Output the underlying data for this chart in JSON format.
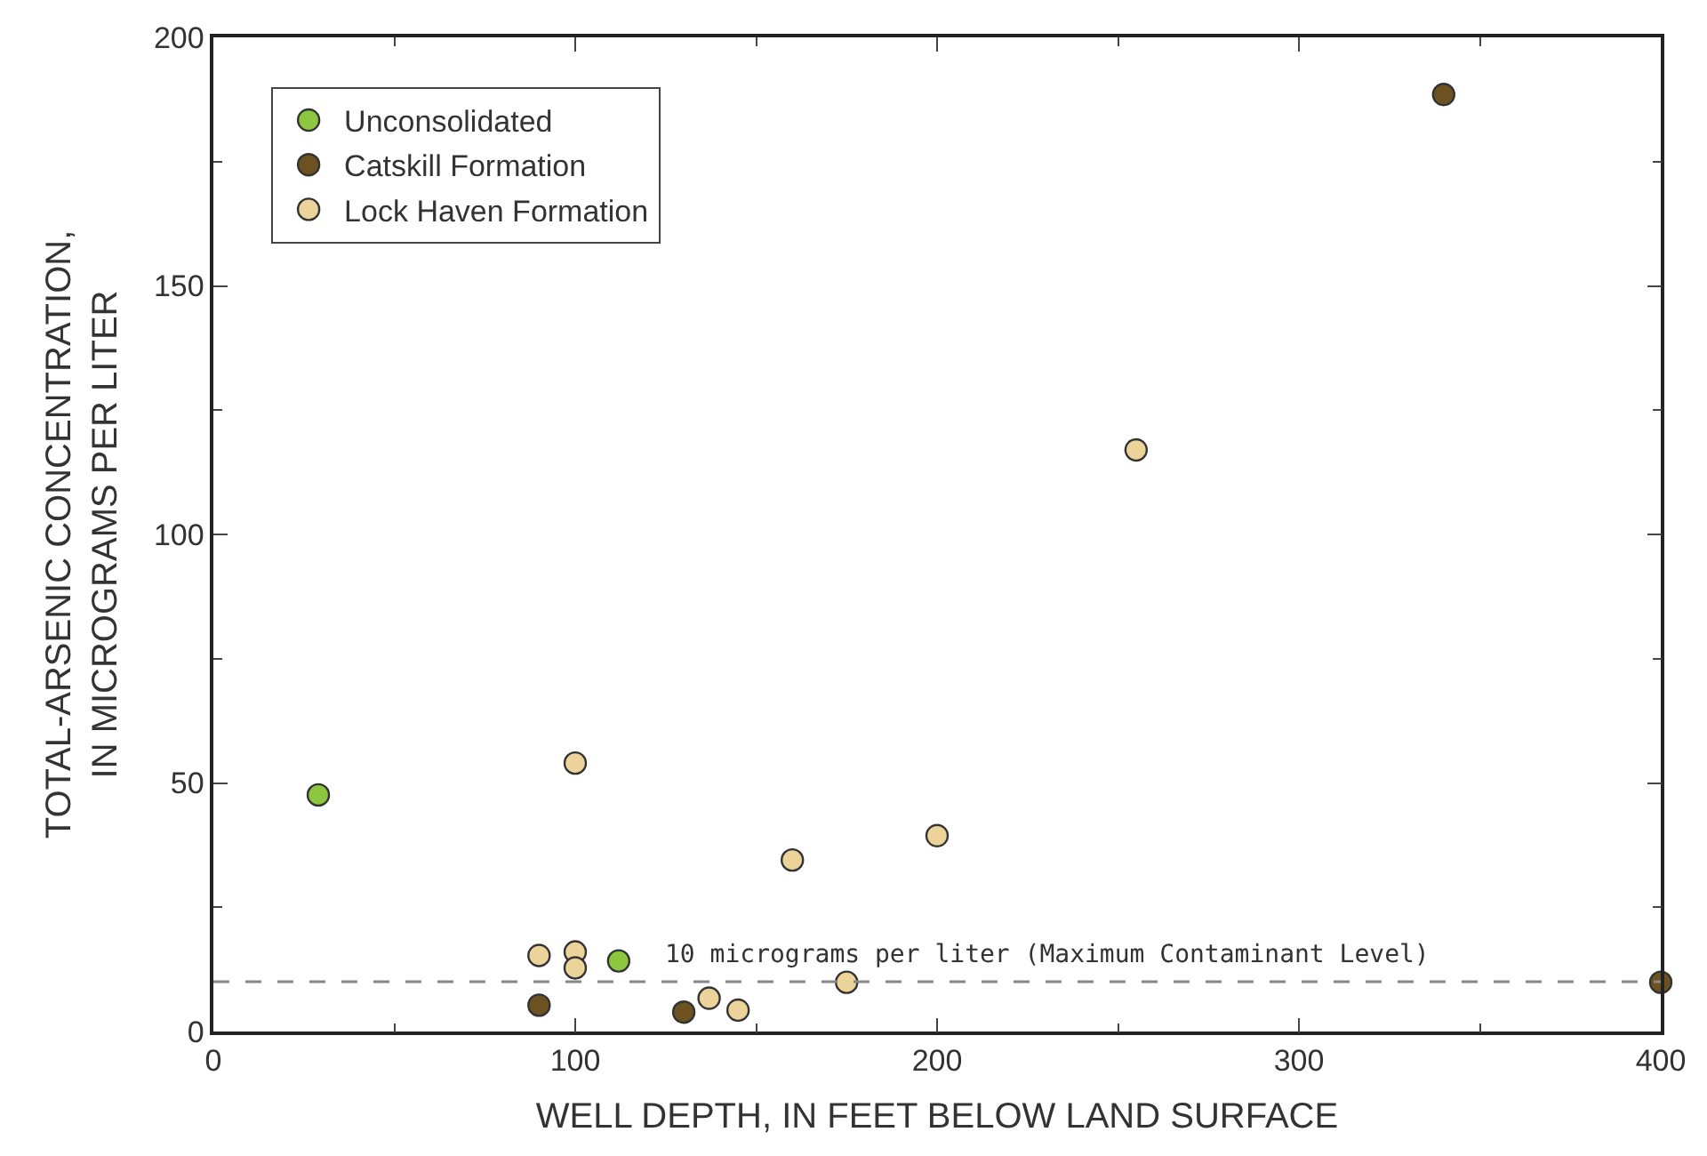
{
  "chart_data": {
    "type": "scatter",
    "xlabel": "WELL DEPTH, IN FEET BELOW LAND SURFACE",
    "ylabel": "TOTAL-ARSENIC CONCENTRATION,\nIN MICROGRAMS PER LITER",
    "xlim": [
      0,
      400
    ],
    "ylim": [
      0,
      200
    ],
    "xticks": [
      0,
      100,
      200,
      300,
      400
    ],
    "yticks": [
      0,
      50,
      100,
      150,
      200
    ],
    "legend": "top left",
    "marker": "circle",
    "series": [
      {
        "name": "Unconsolidated",
        "color": "#8dc63f",
        "x": [
          29,
          112
        ],
        "values": [
          47.6,
          14.2
        ]
      },
      {
        "name": "Catskill Formation",
        "color": "#6b5220",
        "x": [
          340,
          90,
          130,
          400
        ],
        "values": [
          188.5,
          5.3,
          3.9,
          9.9
        ]
      },
      {
        "name": "Lock Haven Formation",
        "color": "#ecd399",
        "x": [
          255,
          100,
          200,
          160,
          90,
          100,
          100,
          137,
          145,
          175
        ],
        "values": [
          117,
          54,
          39.4,
          34.5,
          15.3,
          16,
          12.8,
          6.7,
          4.3,
          9.9
        ]
      }
    ],
    "ref_lines": [
      {
        "axis": "y",
        "value": 10,
        "label": "10 micrograms per liter (Maximum Contaminant Level)",
        "color": "#888888",
        "line_style": "dashed"
      }
    ]
  }
}
